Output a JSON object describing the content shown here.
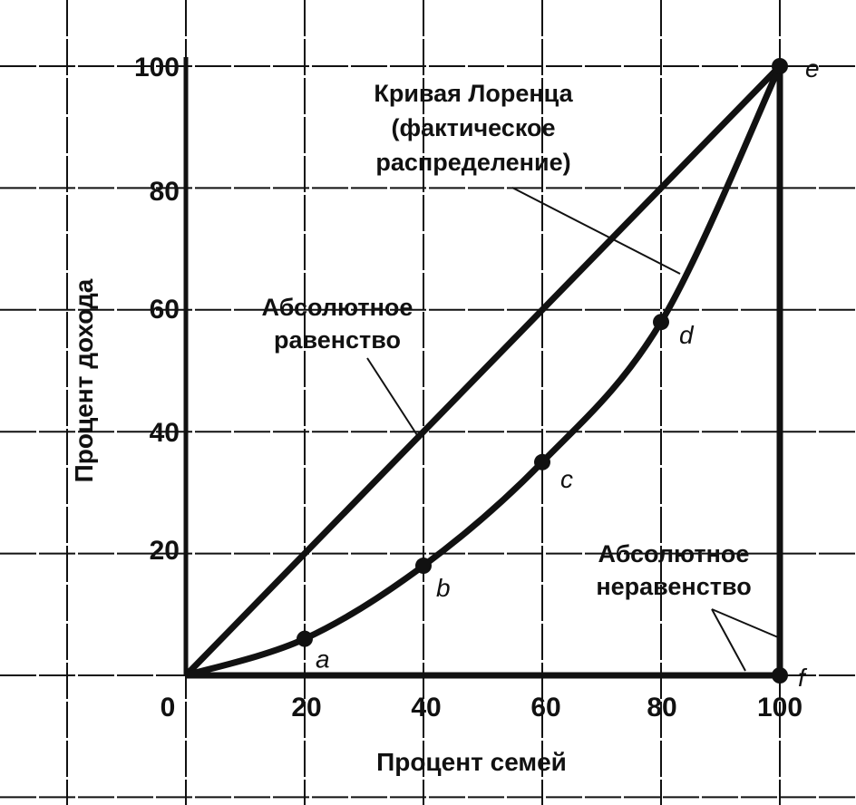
{
  "chart_data": {
    "type": "line",
    "title": "",
    "xlabel": "Процент семей",
    "ylabel": "Процент дохода",
    "xlim": [
      0,
      100
    ],
    "ylim": [
      0,
      100
    ],
    "grid": true,
    "x_ticks": [
      "0",
      "20",
      "40",
      "60",
      "80",
      "100"
    ],
    "y_ticks": [
      "20",
      "40",
      "60",
      "80",
      "100"
    ],
    "series": [
      {
        "name": "Абсолютное равенство",
        "x": [
          0,
          100
        ],
        "y": [
          0,
          100
        ]
      },
      {
        "name": "Кривая Лоренца (фактическое распределение)",
        "x": [
          0,
          20,
          40,
          60,
          80,
          100
        ],
        "y": [
          0,
          6,
          18,
          35,
          58,
          100
        ]
      },
      {
        "name": "Абсолютное неравенство",
        "x": [
          0,
          100,
          100
        ],
        "y": [
          0,
          0,
          100
        ]
      }
    ],
    "points": [
      {
        "label": "a",
        "x": 20,
        "y": 6
      },
      {
        "label": "b",
        "x": 40,
        "y": 18
      },
      {
        "label": "c",
        "x": 60,
        "y": 35
      },
      {
        "label": "d",
        "x": 80,
        "y": 58
      },
      {
        "label": "e",
        "x": 100,
        "y": 100
      },
      {
        "label": "f",
        "x": 100,
        "y": 0
      }
    ],
    "annotations": {
      "lorenz": [
        "Кривая Лоренца",
        "(фактическое",
        "распределение)"
      ],
      "equality": [
        "Абсолютное",
        "равенство"
      ],
      "inequality": [
        "Абсолютное",
        "неравенство"
      ]
    },
    "colors": {
      "ink": "#111111",
      "background": "#ffffff"
    }
  }
}
